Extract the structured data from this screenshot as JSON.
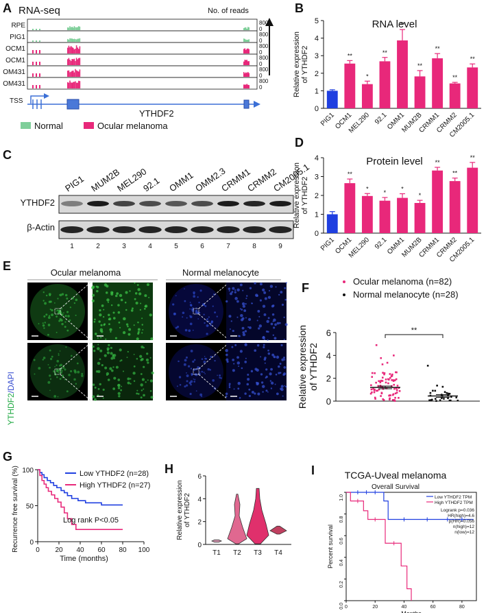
{
  "panels": {
    "A": {
      "letter": "A",
      "title": "RNA-seq",
      "reads_label": "No. of reads",
      "tracks": [
        {
          "label": "RPE",
          "group": "normal",
          "max": "800",
          "min": "0"
        },
        {
          "label": "PIG1",
          "group": "normal",
          "max": "800",
          "min": "0"
        },
        {
          "label": "OCM1",
          "group": "melanoma",
          "max": "800",
          "min": "0"
        },
        {
          "label": "OCM1",
          "group": "melanoma",
          "max": "800",
          "min": "0"
        },
        {
          "label": "OM431",
          "group": "melanoma",
          "max": "800",
          "min": "0"
        },
        {
          "label": "OM431",
          "group": "melanoma",
          "max": "800",
          "min": "0"
        }
      ],
      "tss_label": "TSS",
      "gene_label": "YTHDF2",
      "legend": [
        {
          "label": "Normal",
          "color": "#7fcf9a"
        },
        {
          "label": "Ocular melanoma",
          "color": "#e8287a"
        }
      ]
    },
    "B": {
      "letter": "B"
    },
    "C": {
      "letter": "C",
      "lanes": [
        "PIG1",
        "MUM2B",
        "MEL290",
        "92.1",
        "OMM1",
        "OMM2.3",
        "CRMM1",
        "CRMM2",
        "CM2005.1"
      ],
      "lane_numbers": [
        "1",
        "2",
        "3",
        "4",
        "5",
        "6",
        "7",
        "8",
        "9"
      ],
      "row_labels": [
        "YTHDF2",
        "β-Actin"
      ]
    },
    "D": {
      "letter": "D"
    },
    "E": {
      "letter": "E",
      "group_labels": [
        "Ocular melanoma",
        "Normal melanocyte"
      ],
      "stain_ythdf2": "YTHDF2",
      "stain_sep": "/",
      "stain_dapi": "DAPI"
    },
    "F": {
      "letter": "F"
    },
    "G": {
      "letter": "G"
    },
    "H": {
      "letter": "H"
    },
    "I": {
      "letter": "I"
    }
  },
  "chart_data": [
    {
      "id": "B",
      "type": "bar",
      "title": "RNA level",
      "ylabel": "Relative expression\nof YTHDF2",
      "categories": [
        "PIG1",
        "OCM1",
        "MEL290",
        "92.1",
        "OMM1",
        "MUM2B",
        "CRMM1",
        "CRMM2",
        "CM2005.1"
      ],
      "values": [
        1.0,
        2.55,
        1.38,
        2.68,
        3.87,
        1.82,
        2.85,
        1.42,
        2.33
      ],
      "errors": [
        0.06,
        0.17,
        0.17,
        0.22,
        0.62,
        0.33,
        0.27,
        0.06,
        0.2
      ],
      "significance": [
        "",
        "**",
        "*",
        "**",
        "**",
        "**",
        "**",
        "**",
        "**"
      ],
      "colors": [
        "#1f3fe0",
        "#e8287a",
        "#e8287a",
        "#e8287a",
        "#e8287a",
        "#e8287a",
        "#e8287a",
        "#e8287a",
        "#e8287a"
      ],
      "ylim": [
        0,
        5
      ],
      "yticks": [
        0,
        1,
        2,
        3,
        4,
        5
      ]
    },
    {
      "id": "D",
      "type": "bar",
      "title": "Protein level",
      "ylabel": "Relative expression\nof YTHDF2",
      "categories": [
        "PIG1",
        "OCM1",
        "MEL290",
        "92.1",
        "OMM1",
        "MUM2B",
        "CRMM1",
        "CRMM2",
        "CM2005.1"
      ],
      "values": [
        1.0,
        2.65,
        1.97,
        1.72,
        1.87,
        1.6,
        3.32,
        2.76,
        3.47
      ],
      "errors": [
        0.14,
        0.22,
        0.13,
        0.17,
        0.22,
        0.14,
        0.17,
        0.16,
        0.28
      ],
      "significance": [
        "",
        "**",
        "*",
        "*",
        "*",
        "*",
        "**",
        "**",
        "**"
      ],
      "colors": [
        "#1f3fe0",
        "#e8287a",
        "#e8287a",
        "#e8287a",
        "#e8287a",
        "#e8287a",
        "#e8287a",
        "#e8287a",
        "#e8287a"
      ],
      "ylim": [
        0,
        4
      ],
      "yticks": [
        0,
        1,
        2,
        3,
        4
      ]
    },
    {
      "id": "F",
      "type": "scatter",
      "ylabel": "Relative expression\nof YTHDF2",
      "legend": [
        {
          "label": "Ocular melanoma (n=82)",
          "color": "#e8287a"
        },
        {
          "label": "Normal melanocyte (n=28)",
          "color": "#111111"
        }
      ],
      "groups": [
        {
          "mean": 1.2,
          "sem": 0.12,
          "color": "#e8287a",
          "n": 82,
          "max": 4.9
        },
        {
          "mean": 0.45,
          "sem": 0.12,
          "color": "#111111",
          "n": 28,
          "max": 3.1
        }
      ],
      "significance": "**",
      "ylim": [
        0,
        6
      ],
      "yticks": [
        0,
        2,
        4,
        6
      ]
    },
    {
      "id": "G",
      "type": "line",
      "ylabel": "Recurrence free survival (%)",
      "xlabel": "Time (months)",
      "xlim": [
        0,
        100
      ],
      "ylim": [
        0,
        100
      ],
      "xticks": [
        0,
        20,
        40,
        60,
        80,
        100
      ],
      "yticks": [
        0,
        50,
        100
      ],
      "series": [
        {
          "name": "Low YTHDF2 (n=28)",
          "color": "#1f3fe0",
          "points": [
            [
              0,
              100
            ],
            [
              2,
              96
            ],
            [
              4,
              93
            ],
            [
              6,
              89
            ],
            [
              9,
              85
            ],
            [
              12,
              82
            ],
            [
              15,
              78
            ],
            [
              18,
              75
            ],
            [
              22,
              71
            ],
            [
              25,
              68
            ],
            [
              28,
              64
            ],
            [
              32,
              60
            ],
            [
              38,
              57
            ],
            [
              45,
              54
            ],
            [
              50,
              54
            ],
            [
              60,
              51
            ],
            [
              80,
              51
            ]
          ]
        },
        {
          "name": "High YTHDF2 (n=27)",
          "color": "#e8287a",
          "points": [
            [
              0,
              100
            ],
            [
              2,
              92
            ],
            [
              4,
              85
            ],
            [
              6,
              80
            ],
            [
              8,
              75
            ],
            [
              10,
              70
            ],
            [
              13,
              65
            ],
            [
              16,
              60
            ],
            [
              19,
              55
            ],
            [
              22,
              48
            ],
            [
              25,
              40
            ],
            [
              28,
              32
            ],
            [
              32,
              24
            ],
            [
              36,
              17
            ],
            [
              80,
              17
            ]
          ]
        }
      ],
      "annotation": "Log rank P<0.05"
    },
    {
      "id": "H",
      "type": "violin",
      "ylabel": "Relative expression\nof YTHDF2",
      "categories": [
        "T1",
        "T2",
        "T3",
        "T4"
      ],
      "ylim": [
        0,
        6
      ],
      "yticks": [
        0,
        2,
        4,
        6
      ],
      "colors": [
        "#d99ab5",
        "#e06890",
        "#e0306c",
        "#c04060"
      ]
    },
    {
      "id": "I",
      "type": "line",
      "title": "TCGA-Uveal melanoma",
      "subtitle": "Overall Survival",
      "ylabel": "Percent survival",
      "xlabel": "Months",
      "xlim": [
        0,
        90
      ],
      "ylim": [
        0,
        1.0
      ],
      "xticks": [
        0,
        20,
        40,
        60,
        80
      ],
      "yticks": [
        0.0,
        0.2,
        0.4,
        0.6,
        0.8,
        1.0
      ],
      "series": [
        {
          "name": "Low YTHDF2 TPM",
          "color": "#1f3fe0",
          "points": [
            [
              0,
              1.0
            ],
            [
              26,
              1.0
            ],
            [
              26,
              0.92
            ],
            [
              29,
              0.92
            ],
            [
              29,
              0.75
            ],
            [
              88,
              0.75
            ]
          ]
        },
        {
          "name": "High YTHDF2 TPM",
          "color": "#e8287a",
          "points": [
            [
              0,
              1.0
            ],
            [
              3,
              1.0
            ],
            [
              3,
              0.92
            ],
            [
              12,
              0.92
            ],
            [
              12,
              0.83
            ],
            [
              15,
              0.83
            ],
            [
              15,
              0.75
            ],
            [
              27,
              0.75
            ],
            [
              27,
              0.53
            ],
            [
              38,
              0.53
            ],
            [
              38,
              0.32
            ],
            [
              42,
              0.32
            ],
            [
              42,
              0.11
            ],
            [
              45,
              0.11
            ],
            [
              45,
              0.0
            ]
          ]
        }
      ],
      "stats": [
        "Logrank p=0.036",
        "HR(high)=4.6",
        "p(HR)=0.056",
        "n(high)=12",
        "n(low)=12"
      ]
    }
  ]
}
